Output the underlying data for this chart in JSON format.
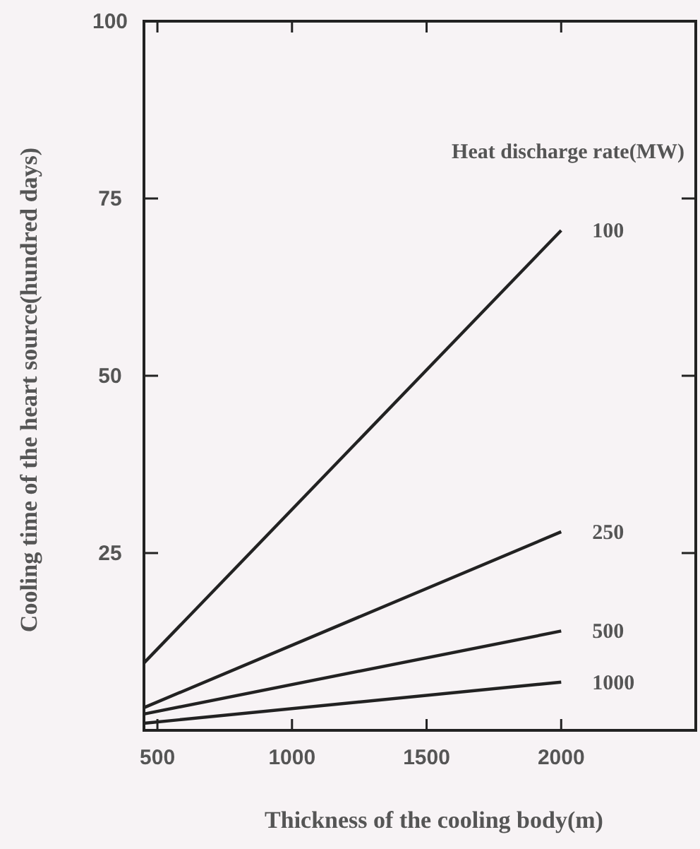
{
  "chart_data": {
    "type": "line",
    "xlabel": "Thickness of the cooling body(m)",
    "ylabel": "Cooling time of the heart source(hundred days)",
    "legend_title": "Heat discharge rate(MW)",
    "xlim": [
      450,
      2500
    ],
    "xticks": [
      500,
      1000,
      1500,
      2000
    ],
    "ylim": [
      0,
      100
    ],
    "yticks": [
      25,
      50,
      75,
      100
    ],
    "x": [
      450,
      2000
    ],
    "series": [
      {
        "name": "100",
        "color": "#222222",
        "values": [
          9.5,
          70.5
        ]
      },
      {
        "name": "250",
        "color": "#222222",
        "values": [
          3.2,
          28
        ]
      },
      {
        "name": "500",
        "color": "#222222",
        "values": [
          2.3,
          14
        ]
      },
      {
        "name": "1000",
        "color": "#222222",
        "values": [
          1,
          6.8
        ]
      }
    ],
    "grid": false,
    "legend": false,
    "marker": "none",
    "line_style": "solid"
  }
}
